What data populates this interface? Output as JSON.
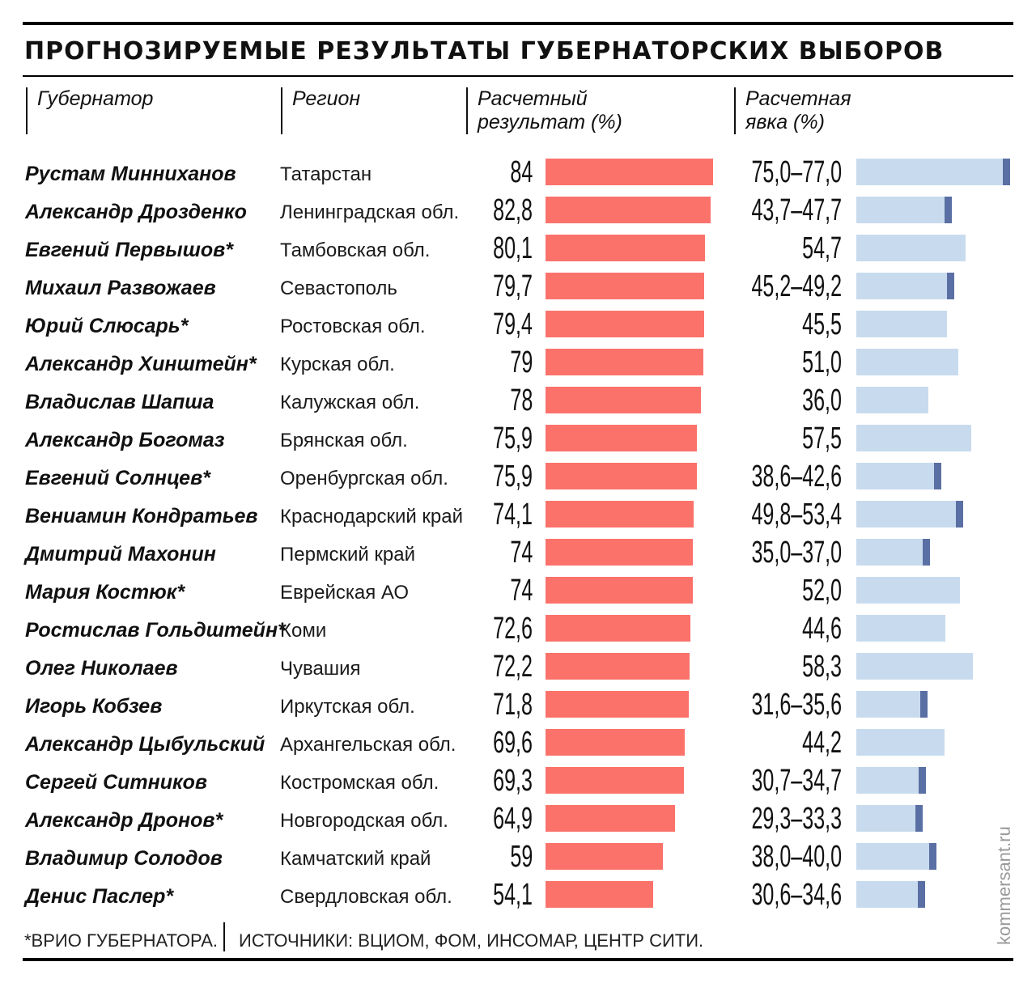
{
  "title": "ПРОГНОЗИРУЕМЫЕ РЕЗУЛЬТАТЫ ГУБЕРНАТОРСКИХ ВЫБОРОВ",
  "headers": {
    "governor": "Губернатор",
    "region": "Регион",
    "result_line1": "Расчетный",
    "result_line2": "результат (%)",
    "turnout_line1": "Расчетная",
    "turnout_line2": "явка (%)"
  },
  "footer": {
    "note": "*ВРИО ГУБЕРНАТОРА.",
    "sources": "ИСТОЧНИКИ: ВЦИОМ, ФОМ, ИНСОМАР, ЦЕНТР СИТИ."
  },
  "credit": "kommersant.ru",
  "colors": {
    "result_bar": "#fb726b",
    "turnout_bar": "#c8dbee",
    "turnout_marker": "#5a6fa3"
  },
  "chart_data": {
    "type": "table",
    "title": "ПРОГНОЗИРУЕМЫЕ РЕЗУЛЬТАТЫ ГУБЕРНАТОРСКИХ ВЫБОРОВ",
    "columns": [
      "Губернатор",
      "Регион",
      "Расчетный результат (%)",
      "Расчетная явка (%)"
    ],
    "rows": [
      {
        "name": "Рустам Минниханов",
        "region": "Татарстан",
        "result": 84,
        "result_label": "84",
        "turnout_label": "75,0–77,0",
        "turnout_low": 75.0,
        "turnout_high": 77.0
      },
      {
        "name": "Александр Дрозденко",
        "region": "Ленинградская обл.",
        "result": 82.8,
        "result_label": "82,8",
        "turnout_label": "43,7–47,7",
        "turnout_low": 43.7,
        "turnout_high": 47.7
      },
      {
        "name": "Евгений Первышов*",
        "region": "Тамбовская обл.",
        "result": 80.1,
        "result_label": "80,1",
        "turnout_label": "54,7",
        "turnout_low": 54.7,
        "turnout_high": null
      },
      {
        "name": "Михаил Развожаев",
        "region": "Севастополь",
        "result": 79.7,
        "result_label": "79,7",
        "turnout_label": "45,2–49,2",
        "turnout_low": 45.2,
        "turnout_high": 49.2
      },
      {
        "name": "Юрий Слюсарь*",
        "region": "Ростовская обл.",
        "result": 79.4,
        "result_label": "79,4",
        "turnout_label": "45,5",
        "turnout_low": 45.5,
        "turnout_high": null
      },
      {
        "name": "Александр Хинштейн*",
        "region": "Курская обл.",
        "result": 79,
        "result_label": "79",
        "turnout_label": "51,0",
        "turnout_low": 51.0,
        "turnout_high": null
      },
      {
        "name": "Владислав Шапша",
        "region": "Калужская обл.",
        "result": 78,
        "result_label": "78",
        "turnout_label": "36,0",
        "turnout_low": 36.0,
        "turnout_high": null
      },
      {
        "name": "Александр Богомаз",
        "region": "Брянская обл.",
        "result": 75.9,
        "result_label": "75,9",
        "turnout_label": "57,5",
        "turnout_low": 57.5,
        "turnout_high": null
      },
      {
        "name": "Евгений Солнцев*",
        "region": "Оренбургская обл.",
        "result": 75.9,
        "result_label": "75,9",
        "turnout_label": "38,6–42,6",
        "turnout_low": 38.6,
        "turnout_high": 42.6
      },
      {
        "name": "Вениамин Кондратьев",
        "region": "Краснодарский край",
        "result": 74.1,
        "result_label": "74,1",
        "turnout_label": "49,8–53,4",
        "turnout_low": 49.8,
        "turnout_high": 53.4
      },
      {
        "name": "Дмитрий Махонин",
        "region": "Пермский край",
        "result": 74,
        "result_label": "74",
        "turnout_label": "35,0–37,0",
        "turnout_low": 35.0,
        "turnout_high": 37.0
      },
      {
        "name": "Мария Костюк*",
        "region": "Еврейская АО",
        "result": 74,
        "result_label": "74",
        "turnout_label": "52,0",
        "turnout_low": 52.0,
        "turnout_high": null
      },
      {
        "name": "Ростислав Гольдштейн*",
        "region": "Коми",
        "result": 72.6,
        "result_label": "72,6",
        "turnout_label": "44,6",
        "turnout_low": 44.6,
        "turnout_high": null
      },
      {
        "name": "Олег Николаев",
        "region": "Чувашия",
        "result": 72.2,
        "result_label": "72,2",
        "turnout_label": "58,3",
        "turnout_low": 58.3,
        "turnout_high": null
      },
      {
        "name": "Игорь Кобзев",
        "region": "Иркутская обл.",
        "result": 71.8,
        "result_label": "71,8",
        "turnout_label": "31,6–35,6",
        "turnout_low": 31.6,
        "turnout_high": 35.6
      },
      {
        "name": "Александр Цыбульский",
        "region": "Архангельская обл.",
        "result": 69.6,
        "result_label": "69,6",
        "turnout_label": "44,2",
        "turnout_low": 44.2,
        "turnout_high": null
      },
      {
        "name": "Сергей Ситников",
        "region": "Костромская обл.",
        "result": 69.3,
        "result_label": "69,3",
        "turnout_label": "30,7–34,7",
        "turnout_low": 30.7,
        "turnout_high": 34.7
      },
      {
        "name": "Александр Дронов*",
        "region": "Новгородская обл.",
        "result": 64.9,
        "result_label": "64,9",
        "turnout_label": "29,3–33,3",
        "turnout_low": 29.3,
        "turnout_high": 33.3
      },
      {
        "name": "Владимир Солодов",
        "region": "Камчатский край",
        "result": 59,
        "result_label": "59",
        "turnout_label": "38,0–40,0",
        "turnout_low": 38.0,
        "turnout_high": 40.0
      },
      {
        "name": "Денис Паслер*",
        "region": "Свердловская обл.",
        "result": 54.1,
        "result_label": "54,1",
        "turnout_label": "30,6–34,6",
        "turnout_low": 30.6,
        "turnout_high": 34.6
      }
    ]
  }
}
